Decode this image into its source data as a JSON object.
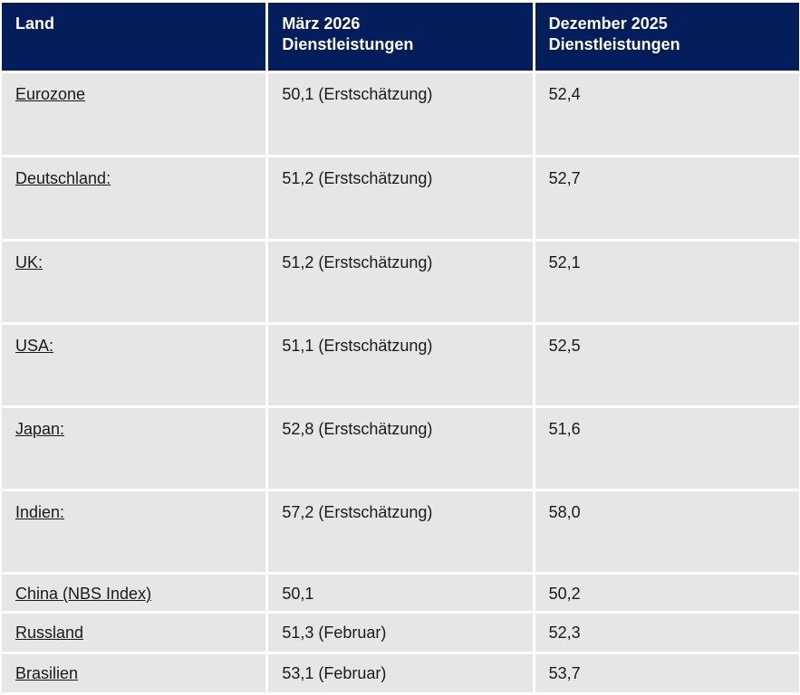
{
  "table": {
    "header": [
      [
        "Land"
      ],
      [
        "März 2026",
        "Dienstleistungen"
      ],
      [
        "Dezember 2025",
        "Dienstleistungen"
      ]
    ],
    "rows": [
      [
        "Eurozone",
        "50,1 (Erstschätzung)",
        "52,4"
      ],
      [
        "Deutschland:",
        "51,2 (Erstschätzung)",
        "52,7"
      ],
      [
        "UK:",
        "51,2 (Erstschätzung)",
        "52,1"
      ],
      [
        "USA:",
        "51,1 (Erstschätzung)",
        "52,5"
      ],
      [
        "Japan:",
        "52,8 (Erstschätzung)",
        "51,6"
      ],
      [
        "Indien:",
        "57,2 (Erstschätzung)",
        "58,0"
      ],
      [
        "China (NBS Index)",
        "50,1",
        "50,2"
      ],
      [
        "Russland",
        "51,3 (Februar)",
        "52,3"
      ],
      [
        "Brasilien",
        "53,1 (Februar)",
        "53,7"
      ]
    ]
  }
}
